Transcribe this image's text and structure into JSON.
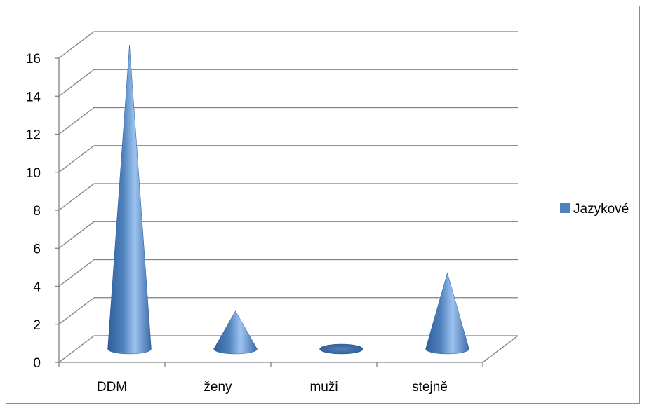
{
  "chart_data": {
    "type": "bar",
    "bar_shape": "cone-3d",
    "categories": [
      "DDM",
      "ženy",
      "muži",
      "stejně"
    ],
    "series": [
      {
        "name": "Jazykové",
        "values": [
          16,
          2,
          0,
          4
        ],
        "color": "#4f81bd"
      }
    ],
    "ylim": [
      0,
      16
    ],
    "yticks": [
      0,
      2,
      4,
      6,
      8,
      10,
      12,
      14,
      16
    ],
    "grid": true,
    "legend_position": "right",
    "title": "",
    "xlabel": "",
    "ylabel": ""
  }
}
